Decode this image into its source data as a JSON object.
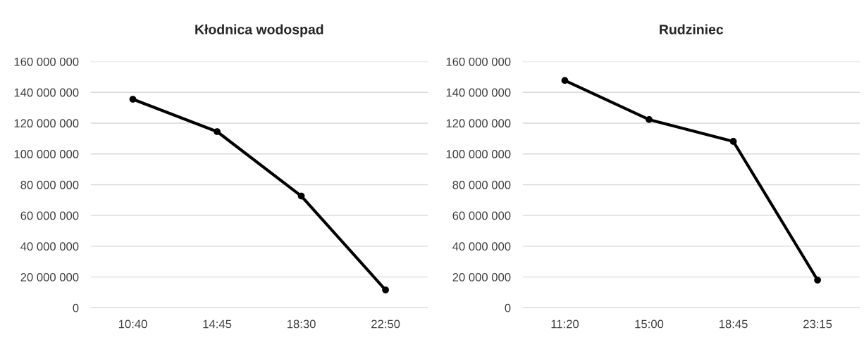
{
  "chart_data": [
    {
      "type": "line",
      "title": "Kłodnica wodospad",
      "categories": [
        "10:40",
        "14:45",
        "18:30",
        "22:50"
      ],
      "series": [
        {
          "color": "#000000",
          "values": [
            135500000,
            114500000,
            72600000,
            11600000
          ]
        }
      ],
      "ylim": [
        0,
        160000000
      ],
      "yticks": [
        {
          "value": 0,
          "label": "0"
        },
        {
          "value": 20000000,
          "label": "20 000 000"
        },
        {
          "value": 40000000,
          "label": "40 000 000"
        },
        {
          "value": 60000000,
          "label": "60 000 000"
        },
        {
          "value": 80000000,
          "label": "80 000 000"
        },
        {
          "value": 100000000,
          "label": "100 000 000"
        },
        {
          "value": 120000000,
          "label": "120 000 000"
        },
        {
          "value": 140000000,
          "label": "140 000 000"
        },
        {
          "value": 160000000,
          "label": "160 000 000"
        }
      ],
      "grid": "y",
      "marker": "circle",
      "line_style": "solid"
    },
    {
      "type": "line",
      "title": "Rudziniec",
      "categories": [
        "11:20",
        "15:00",
        "18:45",
        "23:15"
      ],
      "series": [
        {
          "color": "#000000",
          "values": [
            147700000,
            122300000,
            108100000,
            18000000
          ]
        }
      ],
      "ylim": [
        0,
        160000000
      ],
      "yticks": [
        {
          "value": 0,
          "label": "0"
        },
        {
          "value": 20000000,
          "label": "20 000 000"
        },
        {
          "value": 40000000,
          "label": "40 000 000"
        },
        {
          "value": 60000000,
          "label": "60 000 000"
        },
        {
          "value": 80000000,
          "label": "80 000 000"
        },
        {
          "value": 100000000,
          "label": "100 000 000"
        },
        {
          "value": 120000000,
          "label": "120 000 000"
        },
        {
          "value": 140000000,
          "label": "140 000 000"
        },
        {
          "value": 160000000,
          "label": "160 000 000"
        }
      ],
      "grid": "y",
      "marker": "circle",
      "line_style": "solid"
    }
  ]
}
